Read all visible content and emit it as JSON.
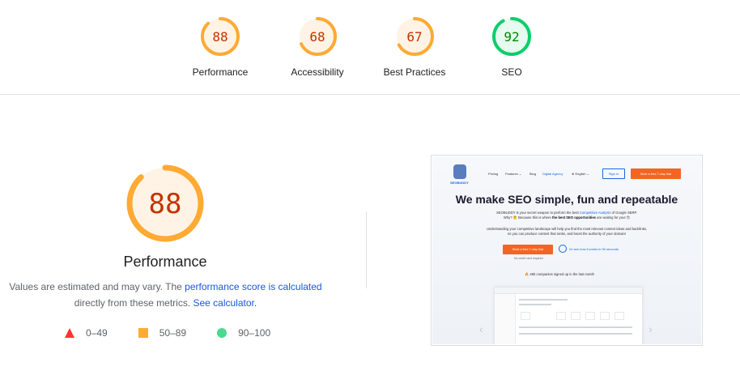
{
  "gauges": [
    {
      "score": "88",
      "label": "Performance",
      "color": "#c33300",
      "ring": "#ffaa33",
      "bg": "#fff3e5"
    },
    {
      "score": "68",
      "label": "Accessibility",
      "color": "#c33300",
      "ring": "#ffaa33",
      "bg": "#fff3e5"
    },
    {
      "score": "67",
      "label": "Best Practices",
      "color": "#c33300",
      "ring": "#ffaa33",
      "bg": "#fff3e5"
    },
    {
      "score": "92",
      "label": "SEO",
      "color": "#008800",
      "ring": "#0cce6b",
      "bg": "#e6faef"
    }
  ],
  "gauge_values": [
    0.88,
    0.68,
    0.67,
    0.92
  ],
  "main": {
    "score": "88",
    "score_value": 0.88,
    "title": "Performance",
    "desc_pre": "Values are estimated and may vary. The ",
    "desc_link": "performance score is calculated",
    "desc_mid": "directly from these metrics. ",
    "desc_link2": "See calculator."
  },
  "legend": {
    "fail": "0–49",
    "average": "50–89",
    "pass": "90–100"
  },
  "preview": {
    "logo_text": "SEOBUDDY",
    "menu": [
      "Pricing",
      "Features ⌄",
      "Blog",
      "Digital Agency",
      "⊕ English ⌄"
    ],
    "signin": "Sign in",
    "cta": "Start a free 7-day trial",
    "headline": "We make SEO simple, fun and repeatable",
    "line1_pre": "SEOBUDDY is your secret weapon to perform the best ",
    "line1_link": "Competitive Analysis",
    "line1_post": " of Google SERP.",
    "line2_pre": "Why? 🤔 Because this is where ",
    "line2_bold": "the best SEO opportunities",
    "line2_post": " are waiting for you! 😍",
    "line3": "Understanding your competitive landscape will help you find the most relevant content ideas and backlinks,",
    "line4": "so you can produce content that ranks, and boost the authority of your domain!",
    "btn": "Start a free 7-day trial",
    "play_label": "Or see how it works in 90 seconds",
    "small": "No credit card required",
    "signed": "🔥 480 companies signed up in the last month",
    "arrow_left": "‹",
    "arrow_right": "›"
  }
}
